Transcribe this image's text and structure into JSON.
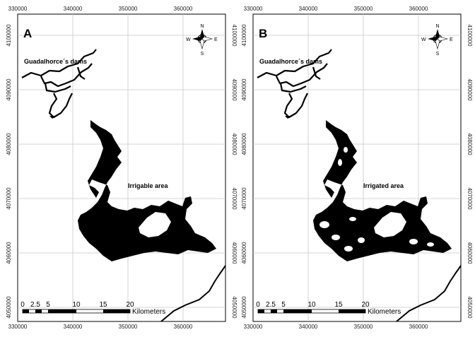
{
  "panels": [
    {
      "id": "A",
      "letter": "A",
      "dams_label": "Guadalhorce´s dams",
      "area_label": "Irrigable area",
      "top_x_ticks": [
        "330000",
        "340000",
        "350000",
        "360000"
      ],
      "bottom_x_ticks": [
        "330000",
        "340000",
        "350000",
        "360000"
      ],
      "left_y_ticks": [
        "4100000",
        "4090000",
        "4080000",
        "4070000",
        "4060000",
        "4050000"
      ],
      "right_y_ticks": [
        "4100000",
        "4090000",
        "4080000",
        "4070000",
        "4060000",
        "4050000"
      ],
      "scale_numbers": [
        "0",
        "2.5",
        "5",
        "10",
        "15",
        "20"
      ],
      "scale_unit": "Kilometers",
      "compass": {
        "n": "N",
        "s": "S",
        "e": "E",
        "w": "W"
      }
    },
    {
      "id": "B",
      "letter": "B",
      "dams_label": "Guadalhorce´s dams",
      "area_label": "Irrigated area",
      "top_x_ticks": [
        "330000",
        "340000",
        "350000",
        "360000"
      ],
      "bottom_x_ticks": [
        "330000",
        "340000",
        "350000",
        "360000"
      ],
      "left_y_ticks": [
        "4100000",
        "4090000",
        "4080000",
        "4070000",
        "4060000",
        "4050000"
      ],
      "right_y_ticks": [
        "4100000",
        "4090000",
        "4080000",
        "4070000",
        "4060000",
        "4050000"
      ],
      "scale_numbers": [
        "0",
        "2.5",
        "5",
        "10",
        "15",
        "20"
      ],
      "scale_unit": "Kilometers",
      "compass": {
        "n": "N",
        "s": "S",
        "e": "E",
        "w": "W"
      }
    }
  ],
  "colors": {
    "feature": "#000000",
    "grid": "#c8c8c8",
    "frame": "#000000",
    "background": "#ffffff"
  }
}
